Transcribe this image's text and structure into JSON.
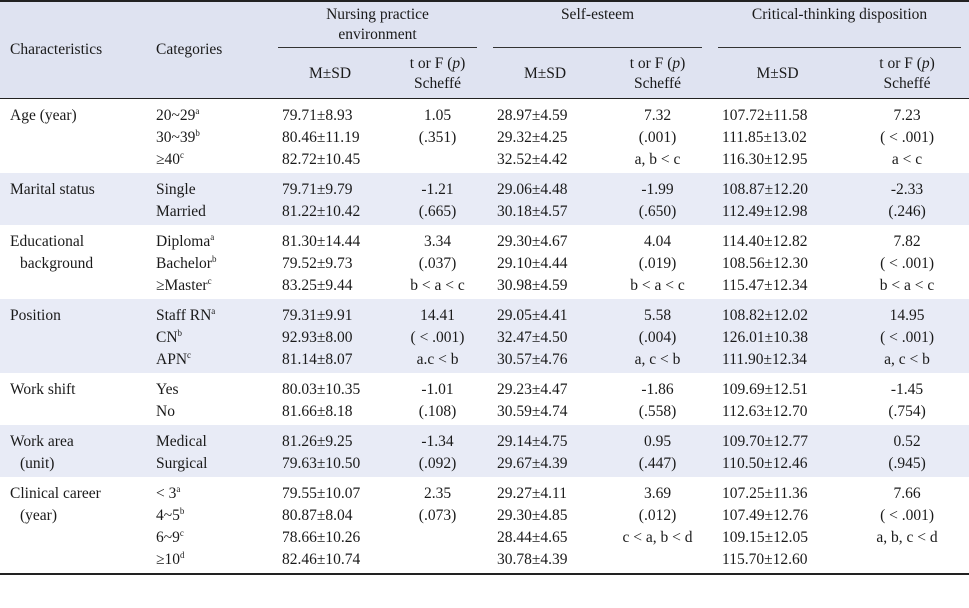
{
  "headers": {
    "characteristics": "Characteristics",
    "categories": "Categories",
    "npe": "Nursing practice environment",
    "se": "Self-esteem",
    "ctd": "Critical-thinking disposition",
    "msd": "M±SD",
    "tf": "t or F (p)",
    "scheffe": "Scheffé"
  },
  "rows": [
    {
      "char": [
        "Age (year)"
      ],
      "cats": [
        {
          "t": "20~29",
          "s": "a"
        },
        {
          "t": "30~39",
          "s": "b"
        },
        {
          "t": "≥40",
          "s": "c"
        }
      ],
      "npe_m": [
        "79.71±8.93",
        "80.46±11.19",
        "82.72±10.45"
      ],
      "npe_t": [
        "1.05",
        "(.351)",
        ""
      ],
      "se_m": [
        "28.97±4.59",
        "29.32±4.25",
        "32.52±4.42"
      ],
      "se_t": [
        "7.32",
        "(.001)",
        "a, b < c"
      ],
      "ctd_m": [
        "107.72±11.58",
        "111.85±13.02",
        "116.30±12.95"
      ],
      "ctd_t": [
        "7.23",
        "( < .001)",
        "a < c"
      ]
    },
    {
      "char": [
        "Marital status"
      ],
      "cats": [
        {
          "t": "Single",
          "s": ""
        },
        {
          "t": "Married",
          "s": ""
        }
      ],
      "npe_m": [
        "79.71±9.79",
        "81.22±10.42"
      ],
      "npe_t": [
        "-1.21",
        "(.665)"
      ],
      "se_m": [
        "29.06±4.48",
        "30.18±4.57"
      ],
      "se_t": [
        "-1.99",
        "(.650)"
      ],
      "ctd_m": [
        "108.87±12.20",
        "112.49±12.98"
      ],
      "ctd_t": [
        "-2.33",
        "(.246)"
      ]
    },
    {
      "char": [
        "Educational",
        "background"
      ],
      "cats": [
        {
          "t": "Diploma",
          "s": "a"
        },
        {
          "t": "Bachelor",
          "s": "b"
        },
        {
          "t": "≥Master",
          "s": "c"
        }
      ],
      "npe_m": [
        "81.30±14.44",
        "79.52±9.73",
        "83.25±9.44"
      ],
      "npe_t": [
        "3.34",
        "(.037)",
        "b < a < c"
      ],
      "se_m": [
        "29.30±4.67",
        "29.10±4.44",
        "30.98±4.59"
      ],
      "se_t": [
        "4.04",
        "(.019)",
        "b < a < c"
      ],
      "ctd_m": [
        "114.40±12.82",
        "108.56±12.30",
        "115.47±12.34"
      ],
      "ctd_t": [
        "7.82",
        "( < .001)",
        "b < a < c"
      ]
    },
    {
      "char": [
        "Position"
      ],
      "cats": [
        {
          "t": "Staff RN",
          "s": "a"
        },
        {
          "t": "CN",
          "s": "b"
        },
        {
          "t": "APN",
          "s": "c"
        }
      ],
      "npe_m": [
        "79.31±9.91",
        "92.93±8.00",
        "81.14±8.07"
      ],
      "npe_t": [
        "14.41",
        "( < .001)",
        "a.c < b"
      ],
      "se_m": [
        "29.05±4.41",
        "32.47±4.50",
        "30.57±4.76"
      ],
      "se_t": [
        "5.58",
        "(.004)",
        "a, c < b"
      ],
      "ctd_m": [
        "108.82±12.02",
        "126.01±10.38",
        "111.90±12.34"
      ],
      "ctd_t": [
        "14.95",
        "( < .001)",
        "a, c < b"
      ]
    },
    {
      "char": [
        "Work shift"
      ],
      "cats": [
        {
          "t": "Yes",
          "s": ""
        },
        {
          "t": "No",
          "s": ""
        }
      ],
      "npe_m": [
        "80.03±10.35",
        "81.66±8.18"
      ],
      "npe_t": [
        "-1.01",
        "(.108)"
      ],
      "se_m": [
        "29.23±4.47",
        "30.59±4.74"
      ],
      "se_t": [
        "-1.86",
        "(.558)"
      ],
      "ctd_m": [
        "109.69±12.51",
        "112.63±12.70"
      ],
      "ctd_t": [
        "-1.45",
        "(.754)"
      ]
    },
    {
      "char": [
        "Work area",
        "(unit)"
      ],
      "cats": [
        {
          "t": "Medical",
          "s": ""
        },
        {
          "t": "Surgical",
          "s": ""
        }
      ],
      "npe_m": [
        "81.26±9.25",
        "79.63±10.50"
      ],
      "npe_t": [
        "-1.34",
        "(.092)"
      ],
      "se_m": [
        "29.14±4.75",
        "29.67±4.39"
      ],
      "se_t": [
        "0.95",
        "(.447)"
      ],
      "ctd_m": [
        "109.70±12.77",
        "110.50±12.46"
      ],
      "ctd_t": [
        "0.52",
        "(.945)"
      ]
    },
    {
      "char": [
        "Clinical career",
        "(year)"
      ],
      "cats": [
        {
          "t": "< 3",
          "s": "a"
        },
        {
          "t": "4~5",
          "s": "b"
        },
        {
          "t": "6~9",
          "s": "c"
        },
        {
          "t": "≥10",
          "s": "d"
        }
      ],
      "npe_m": [
        "79.55±10.07",
        "80.87±8.04",
        "78.66±10.26",
        "82.46±10.74"
      ],
      "npe_t": [
        "2.35",
        "(.073)",
        "",
        ""
      ],
      "se_m": [
        "29.27±4.11",
        "29.30±4.85",
        "28.44±4.65",
        "30.78±4.39"
      ],
      "se_t": [
        "3.69",
        "(.012)",
        "c < a, b < d",
        ""
      ],
      "ctd_m": [
        "107.25±11.36",
        "107.49±12.76",
        "109.15±12.05",
        "115.70±12.60"
      ],
      "ctd_t": [
        "7.66",
        "( < .001)",
        "a, b, c < d",
        ""
      ]
    }
  ]
}
